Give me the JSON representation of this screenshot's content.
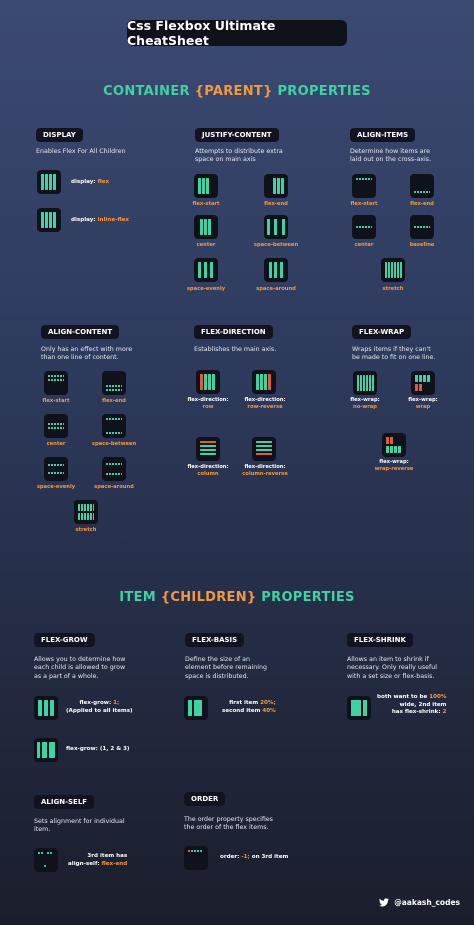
{
  "title": "Css Flexbox Ultimate CheatSheet",
  "container_heading": {
    "a": "CONTAINER ",
    "b": "{PARENT}",
    "c": " PROPERTIES"
  },
  "item_heading": {
    "a": "ITEM ",
    "b": "{CHILDREN}",
    "c": " PROPERTIES"
  },
  "display": {
    "label": "DISPLAY",
    "desc": "Enables Flex For All Children",
    "cap1_key": "display: ",
    "cap1_val": "flex",
    "cap2_key": "display: ",
    "cap2_val": "inline-flex"
  },
  "justify": {
    "label": "JUSTIFY-CONTENT",
    "desc1": "Attempts to distribute extra",
    "desc2": "space on main axis",
    "items": [
      "flex-start",
      "flex-end",
      "center",
      "space-between",
      "space-evenly",
      "space-around"
    ]
  },
  "align_items": {
    "label": "ALIGN-ITEMS",
    "desc1": "Determine how items are",
    "desc2": "laid out on the cross-axis.",
    "items": [
      "flex-start",
      "flex-end",
      "center",
      "baseline",
      "stretch"
    ]
  },
  "align_content": {
    "label": "ALIGN-CONTENT",
    "desc1": "Only has an effect with more",
    "desc2": "than one line of content.",
    "items": [
      "flex-start",
      "flex-end",
      "center",
      "space-between",
      "space-evenly",
      "space-around",
      "stretch"
    ]
  },
  "flex_direction": {
    "label": "FLEX-DIRECTION",
    "desc": "Establishes the main axis.",
    "key": "flex-direction:",
    "items": [
      "row",
      "row-reverse",
      "column",
      "column-reverse"
    ]
  },
  "flex_wrap": {
    "label": "FLEX-WRAP",
    "desc1": "Wraps items if they can't",
    "desc2": "be made to fit on one line.",
    "key": "flex-wrap:",
    "items": [
      "no-wrap",
      "wrap",
      "wrap-reverse"
    ]
  },
  "flex_grow": {
    "label": "FLEX-GROW",
    "desc1": "Allows you to determine how",
    "desc2": "each child is allowed to grow",
    "desc3": "as a part of a whole.",
    "note1_a": "flex-grow: ",
    "note1_b": "1;",
    "note1_c": "(Applied to all items)",
    "note2_a": "flex-grow: ",
    "note2_b": "(1, 2 & 3)"
  },
  "flex_basis": {
    "label": "FLEX-BASIS",
    "desc1": "Define the size of an",
    "desc2": "element before remaining",
    "desc3": "space is distributed.",
    "note1_a": "first item ",
    "note1_b": "20%;",
    "note2_a": "second item ",
    "note2_b": "40%"
  },
  "flex_shrink": {
    "label": "FLEX-SHRINK",
    "desc1": "Allows an item to shrink if",
    "desc2": "necessary. Only really useful",
    "desc3": "with a set size or flex-basis.",
    "note1_a": "both want to be ",
    "note1_b": "100%",
    "note2": "wide, 2nd item",
    "note3_a": "has flex-shrink: ",
    "note3_b": "2"
  },
  "align_self": {
    "label": "ALIGN-SELF",
    "desc1": "Sets alignment for individual",
    "desc2": "item.",
    "note1": "3rd item has",
    "note2_a": "align-self: ",
    "note2_b": "flex-end"
  },
  "order": {
    "label": "ORDER",
    "desc1": "The order property specifies",
    "desc2": "the order of the flex items.",
    "note_a": "order: ",
    "note_b": "-1;",
    "note_c": " on 3rd item"
  },
  "footer": {
    "handle": "@aakash_codes",
    "icon": "twitter-bird-icon"
  },
  "colors": {
    "accent": "#3ed3a3",
    "highlight": "#f39a3d",
    "red": "#e05a3b",
    "box": "#0f121b"
  }
}
